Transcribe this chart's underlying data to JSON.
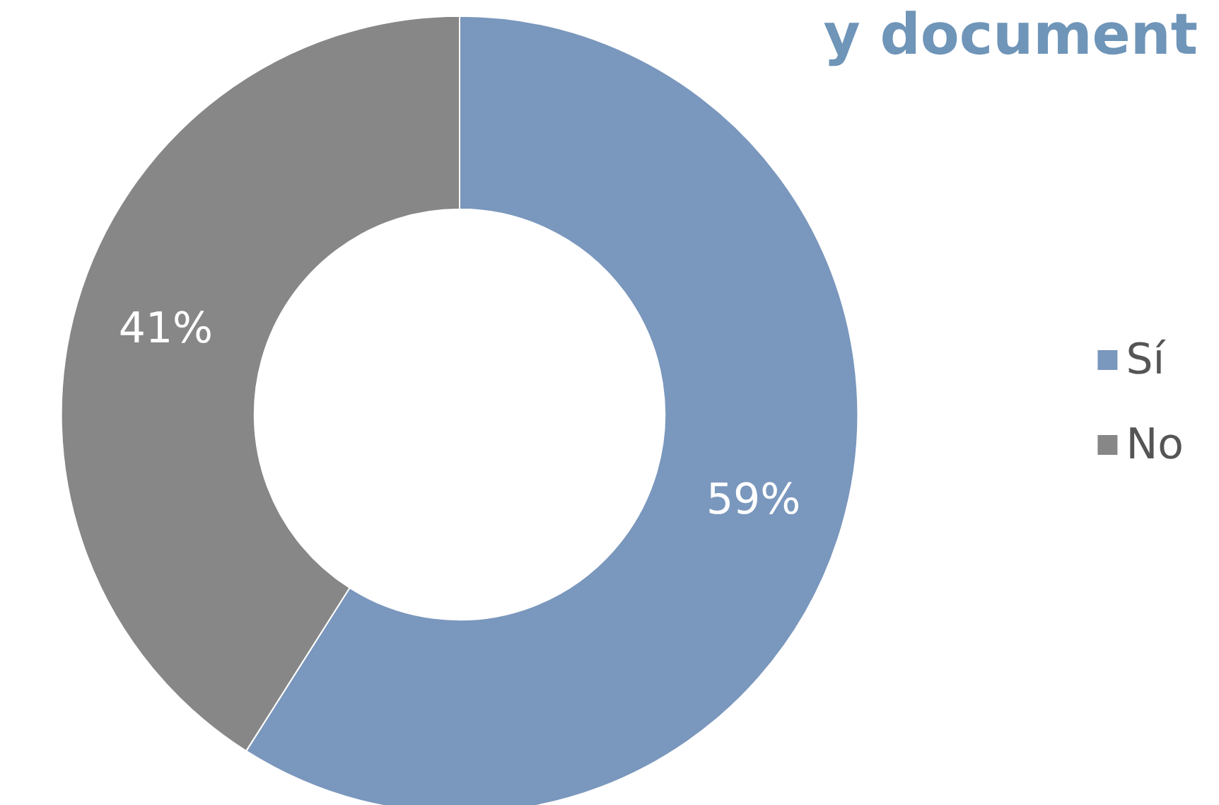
{
  "chart_data": {
    "type": "donut",
    "title": "y document",
    "categories": [
      "Sí",
      "No"
    ],
    "values": [
      59,
      41
    ],
    "colors": [
      "#7a97bd",
      "#878787"
    ],
    "value_labels": [
      "59%",
      "41%"
    ],
    "legend": "right"
  }
}
